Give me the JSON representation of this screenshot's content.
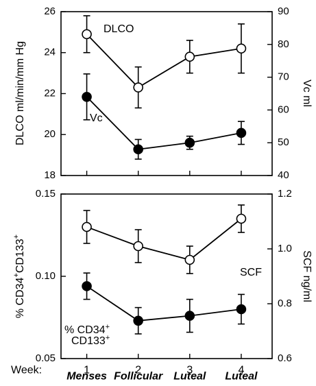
{
  "chart_data": [
    {
      "type": "line",
      "x": [
        1,
        2,
        3,
        4
      ],
      "xlim": [
        0.5,
        4.6
      ],
      "left_axis": {
        "label": "DLCO ml/min/mm Hg",
        "lim": [
          18,
          26
        ],
        "ticks": [
          "18",
          "20",
          "22",
          "24",
          "26"
        ]
      },
      "right_axis": {
        "label": "Vc ml",
        "lim": [
          40,
          90
        ],
        "ticks": [
          "40",
          "50",
          "60",
          "70",
          "80",
          "90"
        ]
      },
      "series": [
        {
          "name": "DLCO",
          "axis": "left",
          "marker": "open-circle",
          "values": [
            24.9,
            22.3,
            23.8,
            24.2
          ],
          "errors": [
            0.9,
            1.0,
            0.8,
            1.2
          ]
        },
        {
          "name": "Vc",
          "axis": "right",
          "marker": "filled-circle",
          "values": [
            64,
            48,
            50,
            53
          ],
          "errors": [
            7,
            3,
            2,
            3.5
          ]
        }
      ],
      "grid": false
    },
    {
      "type": "line",
      "x": [
        1,
        2,
        3,
        4
      ],
      "xlim": [
        0.5,
        4.6
      ],
      "left_axis": {
        "label": "% CD34+CD133+",
        "lim": [
          0.05,
          0.15
        ],
        "ticks": [
          "0.05",
          "0.10",
          "0.15"
        ]
      },
      "right_axis": {
        "label": "SCF ng/ml",
        "lim": [
          0.6,
          1.2
        ],
        "ticks": [
          "0.6",
          "0.8",
          "1.0",
          "1.2"
        ]
      },
      "series": [
        {
          "name": "SCF",
          "axis": "right",
          "marker": "open-circle",
          "values": [
            1.08,
            1.01,
            0.96,
            1.11
          ],
          "errors": [
            0.06,
            0.06,
            0.05,
            0.05
          ]
        },
        {
          "name": "% CD34+CD133+",
          "axis": "left",
          "marker": "filled-circle",
          "values": [
            0.094,
            0.073,
            0.076,
            0.08
          ],
          "errors": [
            0.008,
            0.008,
            0.01,
            0.009
          ]
        }
      ],
      "grid": false
    }
  ],
  "x_axis": {
    "week_label": "Week:",
    "week_ticks": [
      "1",
      "2",
      "3",
      "4"
    ],
    "phases": [
      "Menses",
      "Follicular",
      "Luteal",
      "Luteal"
    ]
  }
}
